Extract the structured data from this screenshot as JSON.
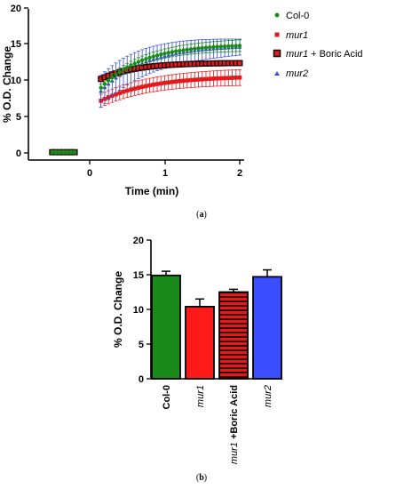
{
  "chart_data": [
    {
      "type": "scatter",
      "panel_label": "a",
      "xlabel": "Time (min)",
      "ylabel": "% O.D. Change",
      "xlim": [
        -0.55,
        2.05
      ],
      "ylim": [
        -0.5,
        20
      ],
      "x_ticks": [
        0,
        1,
        2
      ],
      "y_ticks": [
        0,
        5,
        10,
        15,
        20
      ],
      "legend_position": "right",
      "series": [
        {
          "name": "Col-0",
          "color": "#1a8a1a",
          "marker": "circle",
          "pre_x": [
            -0.5,
            -0.45,
            -0.4,
            -0.35,
            -0.3,
            -0.25,
            -0.2
          ],
          "pre_y": [
            0.1,
            0.1,
            0.1,
            0.1,
            0.1,
            0.1,
            0.1
          ],
          "pre_err": [
            0.25,
            0.25,
            0.25,
            0.25,
            0.25,
            0.25,
            0.25
          ],
          "curve": {
            "start": 0.15,
            "end": 2.0,
            "step": 0.05,
            "y_start": 9.0,
            "y_end": 14.8,
            "rate": 1.8,
            "err_start": 0.5,
            "err_end": 0.8
          }
        },
        {
          "name": "mur1",
          "color": "#e31a1c",
          "marker": "square",
          "pre_x": [
            -0.5,
            -0.45,
            -0.4,
            -0.35,
            -0.3,
            -0.25,
            -0.2
          ],
          "pre_y": [
            0.15,
            0.15,
            0.15,
            0.15,
            0.15,
            0.15,
            0.15
          ],
          "pre_err": [
            0.3,
            0.3,
            0.3,
            0.3,
            0.3,
            0.3,
            0.3
          ],
          "curve": {
            "start": 0.15,
            "end": 2.0,
            "step": 0.05,
            "y_start": 7.2,
            "y_end": 10.4,
            "rate": 1.5,
            "err_start": 0.9,
            "err_end": 1.1
          }
        },
        {
          "name": "mur1 + Boric Acid",
          "color": "#8b1a1a",
          "marker": "square-outlined",
          "pre_x": [
            -0.5,
            -0.45,
            -0.4,
            -0.35,
            -0.3,
            -0.25,
            -0.2
          ],
          "pre_y": [
            0.1,
            0.1,
            0.1,
            0.1,
            0.1,
            0.1,
            0.1
          ],
          "pre_err": [
            0.1,
            0.1,
            0.1,
            0.1,
            0.1,
            0.1,
            0.1
          ],
          "curve": {
            "start": 0.15,
            "end": 2.0,
            "step": 0.05,
            "y_start": 10.2,
            "y_end": 12.4,
            "rate": 2.2,
            "err_start": 0.3,
            "err_end": 0.3
          }
        },
        {
          "name": "mur2",
          "color": "#3b4fe0",
          "marker": "triangle",
          "pre_x": [
            -0.5,
            -0.45,
            -0.4,
            -0.35,
            -0.3,
            -0.25,
            -0.2
          ],
          "pre_y": [
            0.1,
            0.1,
            0.1,
            0.1,
            0.1,
            0.1,
            0.1
          ],
          "pre_err": [
            0.2,
            0.2,
            0.2,
            0.2,
            0.2,
            0.2,
            0.2
          ],
          "curve": {
            "start": 0.15,
            "end": 2.0,
            "step": 0.05,
            "y_start": 8.5,
            "y_end": 14.6,
            "rate": 1.7,
            "err_start": 2.2,
            "err_end": 1.1
          }
        }
      ]
    },
    {
      "type": "bar",
      "panel_label": "b",
      "ylabel": "% O.D. Change",
      "ylim": [
        0,
        20
      ],
      "y_ticks": [
        0,
        5,
        10,
        15,
        20
      ],
      "categories": [
        "Col-0",
        "mur1",
        "mur1 +Boric Acid",
        "mur2"
      ],
      "values": [
        14.9,
        10.4,
        12.5,
        14.7
      ],
      "errors": [
        0.6,
        1.1,
        0.4,
        1.0
      ],
      "colors": [
        "#1a8a1a",
        "#ff1a1a",
        "#e31a1c",
        "#3b4fff"
      ],
      "hatched": [
        false,
        false,
        true,
        false
      ]
    }
  ],
  "legend": {
    "col0": "Col-0",
    "mur1": "mur1",
    "mur1_ba_italic": "mur1",
    "mur1_ba_rest": " + Boric Acid",
    "mur2": "mur2"
  },
  "panel_a": {
    "ylabel": "% O.D. Change",
    "xlabel": "Time (min)",
    "label_open": "(",
    "label_letter": "a",
    "label_close": ")",
    "y_ticks": [
      "0",
      "5",
      "10",
      "15",
      "20"
    ],
    "x_ticks": [
      "0",
      "1",
      "2"
    ]
  },
  "panel_b": {
    "ylabel": "% O.D. Change",
    "label_open": "(",
    "label_letter": "b",
    "label_close": ")",
    "y_ticks": [
      "0",
      "5",
      "10",
      "15",
      "20"
    ],
    "cat_col0": "Col-0",
    "cat_mur1": "mur1",
    "cat_mur1ba_italic": "mur1",
    "cat_mur1ba_rest": " +Boric Acid",
    "cat_mur2": "mur2"
  }
}
